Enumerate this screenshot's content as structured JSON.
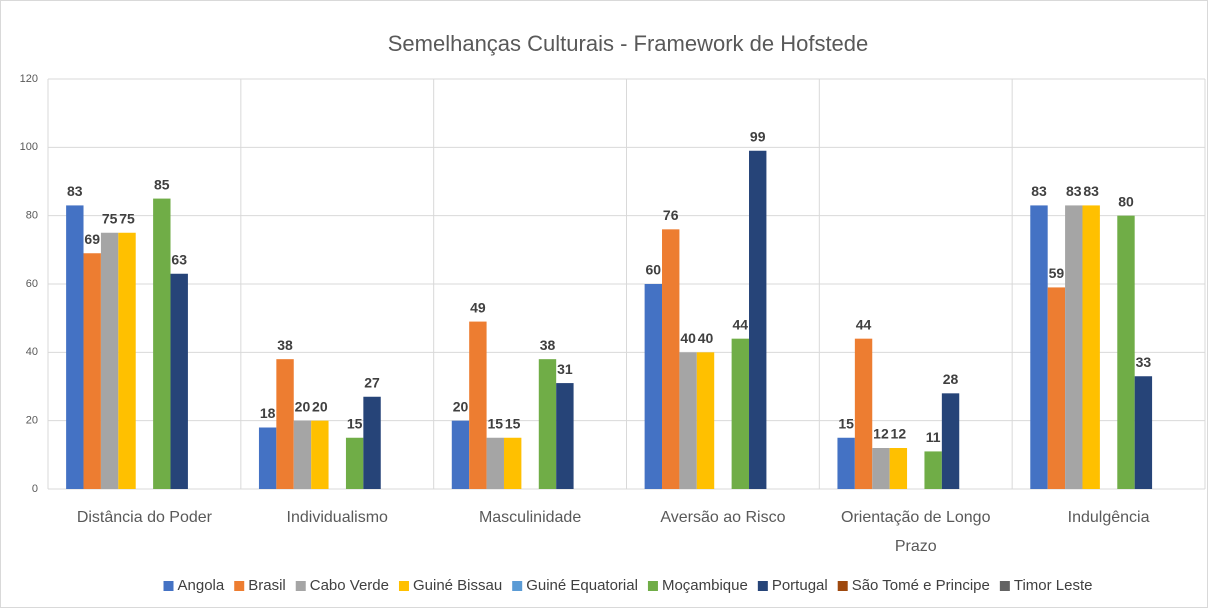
{
  "chart_data": {
    "type": "bar",
    "title": "Semelhanças Culturais - Framework de Hofstede",
    "categories": [
      "Distância do Poder",
      "Individualismo",
      "Masculinidade",
      "Aversão ao Risco",
      "Orientação de Longo Prazo",
      "Indulgência"
    ],
    "series": [
      {
        "name": "Angola",
        "color": "#4472c4",
        "values": [
          83,
          18,
          20,
          60,
          15,
          83
        ]
      },
      {
        "name": "Brasil",
        "color": "#ed7d31",
        "values": [
          69,
          38,
          49,
          76,
          44,
          59
        ]
      },
      {
        "name": "Cabo Verde",
        "color": "#a5a5a5",
        "values": [
          75,
          20,
          15,
          40,
          12,
          83
        ]
      },
      {
        "name": "Guiné Bissau",
        "color": "#ffc000",
        "values": [
          75,
          20,
          15,
          40,
          12,
          83
        ]
      },
      {
        "name": "Guiné Equatorial",
        "color": "#5b9bd5",
        "values": [
          null,
          null,
          null,
          null,
          null,
          null
        ]
      },
      {
        "name": "Moçambique",
        "color": "#70ad47",
        "values": [
          85,
          15,
          38,
          44,
          11,
          80
        ]
      },
      {
        "name": "Portugal",
        "color": "#264478",
        "values": [
          63,
          27,
          31,
          99,
          28,
          33
        ]
      },
      {
        "name": "São Tomé e Principe",
        "color": "#9e480e",
        "values": [
          null,
          null,
          null,
          null,
          null,
          null
        ]
      },
      {
        "name": "Timor Leste",
        "color": "#636363",
        "values": [
          null,
          null,
          null,
          null,
          null,
          null
        ]
      }
    ],
    "ylim": [
      0,
      120
    ],
    "yticks": [
      0,
      20,
      40,
      60,
      80,
      100,
      120
    ],
    "grid": true,
    "legend": "bottom"
  }
}
